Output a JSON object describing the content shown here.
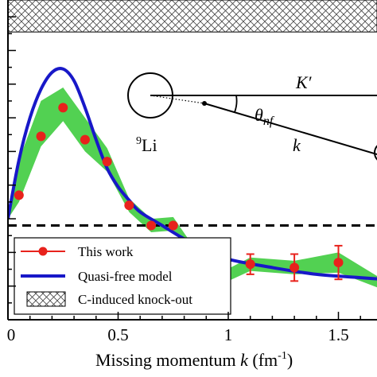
{
  "chart_data": {
    "type": "line",
    "xlabel": "Missing momentum k (fm-1)",
    "xlabel_parts": {
      "main": "Missing momentum ",
      "var": "k",
      "unit_open": " (fm",
      "exp": "-1",
      "unit_close": ")"
    },
    "xlim": [
      0,
      1.7
    ],
    "ylim": [
      0,
      1.9
    ],
    "x_ticks": [
      0,
      0.5,
      1,
      1.5
    ],
    "x_tick_labels": [
      "0",
      "0.5",
      "1",
      "1.5"
    ],
    "grid": false,
    "legend_placement": "bottom-left",
    "series": [
      {
        "name": "This work",
        "x": [
          0.05,
          0.15,
          0.25,
          0.35,
          0.45,
          0.55,
          0.65,
          0.75,
          0.85,
          0.95,
          1.1,
          1.3,
          1.5
        ],
        "y": [
          0.74,
          1.09,
          1.26,
          1.07,
          0.94,
          0.68,
          0.56,
          0.56,
          0.38,
          0.23,
          0.33,
          0.31,
          0.34
        ],
        "yerr": [
          0.02,
          0.02,
          0.02,
          0.02,
          0.02,
          0.02,
          0.02,
          0.02,
          0.04,
          0.06,
          0.06,
          0.08,
          0.1
        ]
      },
      {
        "name": "Quasi-free model",
        "x": [
          0.0,
          0.05,
          0.1,
          0.15,
          0.2,
          0.25,
          0.3,
          0.35,
          0.4,
          0.45,
          0.5,
          0.55,
          0.6,
          0.7,
          0.8,
          0.9,
          1.0,
          1.2,
          1.4,
          1.6,
          1.7
        ],
        "y": [
          0.6,
          0.95,
          1.2,
          1.37,
          1.47,
          1.49,
          1.42,
          1.26,
          1.07,
          0.9,
          0.79,
          0.71,
          0.64,
          0.56,
          0.48,
          0.42,
          0.36,
          0.31,
          0.27,
          0.25,
          0.24
        ]
      },
      {
        "name": "This work (band)",
        "x": [
          0.0,
          0.05,
          0.15,
          0.25,
          0.35,
          0.45,
          0.55,
          0.65,
          0.75,
          0.85,
          0.95,
          1.1,
          1.3,
          1.5,
          1.7
        ],
        "lower": [
          0.6,
          0.7,
          1.03,
          1.18,
          1.0,
          0.88,
          0.64,
          0.52,
          0.53,
          0.36,
          0.2,
          0.29,
          0.27,
          0.28,
          0.18
        ],
        "upper": [
          0.6,
          0.95,
          1.3,
          1.38,
          1.2,
          1.02,
          0.72,
          0.6,
          0.61,
          0.42,
          0.27,
          0.37,
          0.35,
          0.4,
          0.24
        ]
      }
    ],
    "reference_line_y": 0.56,
    "hatched_band": {
      "name": "C-induced knock-out",
      "y_range": [
        1.71,
        1.9
      ]
    },
    "legend": [
      "This work",
      "Quasi-free model",
      "C-induced knock-out"
    ],
    "colors": {
      "points": "#e8221c",
      "model": "#1818c8",
      "band": "#52d152",
      "hatch": "#444444",
      "axis": "#000000"
    },
    "diagram": {
      "nucleus_label": "9Li",
      "nucleus_mass": "9",
      "nucleus_symbol": "Li",
      "vector_upper": "K′",
      "vector_lower": "k",
      "angle_label": "θnf",
      "angle_symbol": "θ",
      "angle_sub": "nf"
    }
  }
}
